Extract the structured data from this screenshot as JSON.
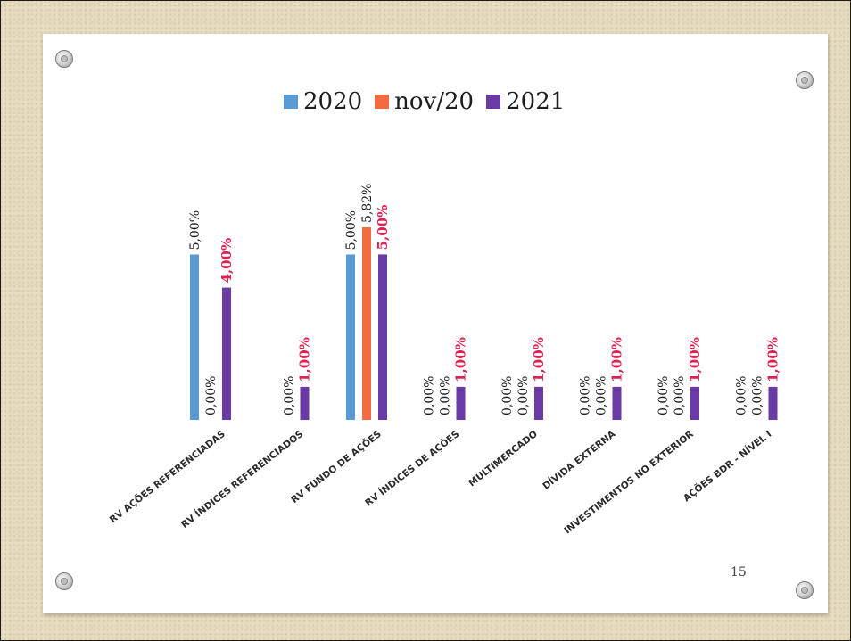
{
  "chart_data": {
    "type": "bar",
    "title": "",
    "xlabel": "",
    "ylabel": "",
    "categories": [
      "RV AÇÕES REFERENCIADAS",
      "RV ÍNDICES REFERENCIADOS",
      "RV FUNDO DE AÇÕES",
      "RV ÍNDICES DE AÇÕES",
      "MULTIMERCADO",
      "DÍVIDA EXTERNA",
      "INVESTIMENTOS NO EXTERIOR",
      "AÇÕES BDR - NÍVEL I"
    ],
    "series": [
      {
        "name": "2020",
        "color": "#5b9bd5",
        "values": [
          5.0,
          0.0,
          5.0,
          0.0,
          0.0,
          0.0,
          0.0,
          0.0
        ],
        "labels": [
          "5,00%",
          "",
          "5,00%",
          "0,00%",
          "0,00%",
          "0,00%",
          "0,00%",
          "0,00%"
        ]
      },
      {
        "name": "nov/20",
        "color": "#f26b43",
        "values": [
          0.0,
          0.0,
          5.82,
          0.0,
          0.0,
          0.0,
          0.0,
          0.0
        ],
        "labels": [
          "0,00%",
          "0,00%",
          "5,82%",
          "0,00%",
          "0,00%",
          "0,00%",
          "0,00%",
          "0,00%"
        ]
      },
      {
        "name": "2021",
        "color": "#6a3aa6",
        "label_color": "#e0204e",
        "values": [
          4.0,
          1.0,
          5.0,
          1.0,
          1.0,
          1.0,
          1.0,
          1.0
        ],
        "labels": [
          "4,00%",
          "1,00%",
          "5,00%",
          "1,00%",
          "1,00%",
          "1,00%",
          "1,00%",
          "1,00%"
        ]
      }
    ],
    "ylim": [
      0,
      5.82
    ],
    "grid": false,
    "legend_position": "top"
  },
  "slide": {
    "page_number": "15"
  }
}
